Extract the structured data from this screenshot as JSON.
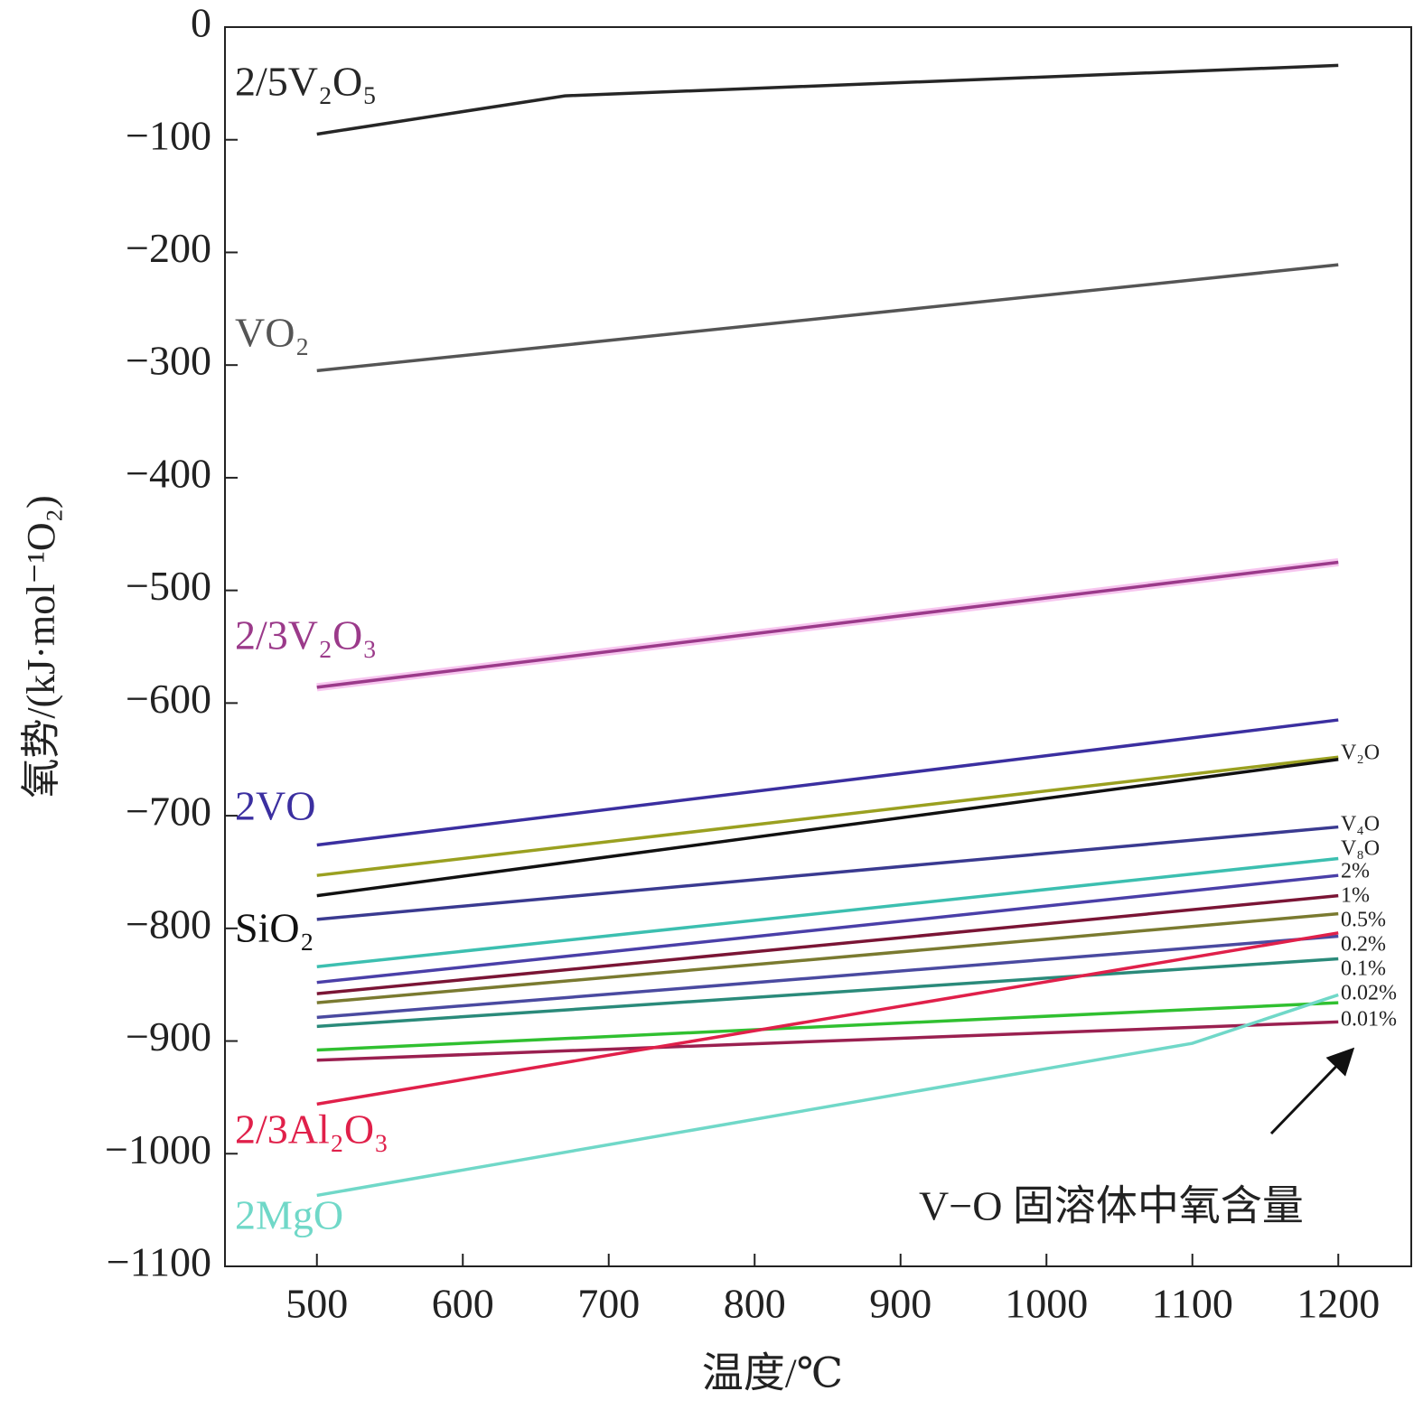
{
  "chart_data": {
    "type": "line",
    "x_label": "温度/℃",
    "y_label": "氧势/(kJ·mol⁻¹O₂)",
    "annotation": "V−O 固溶体中氧含量",
    "xlim": [
      437,
      1250
    ],
    "ylim": [
      -1100,
      0
    ],
    "xticks": [
      500,
      600,
      700,
      800,
      900,
      1000,
      1100,
      1200
    ],
    "yticks": [
      0,
      {
        "value": -100,
        "label": "−100"
      },
      {
        "value": -200,
        "label": "−200"
      },
      {
        "value": -300,
        "label": "−300"
      },
      {
        "value": -400,
        "label": "−400"
      },
      {
        "value": -500,
        "label": "−500"
      },
      {
        "value": -600,
        "label": "−600"
      },
      {
        "value": -700,
        "label": "−700"
      },
      {
        "value": -800,
        "label": "−800"
      },
      {
        "value": -900,
        "label": "−900"
      },
      {
        "value": -1000,
        "label": "−1000"
      },
      {
        "value": -1100,
        "label": "−1100"
      }
    ],
    "grid": false,
    "series": [
      {
        "name": "2/5V₂O₅",
        "color": "#262626",
        "x": [
          500,
          670,
          1200
        ],
        "values": [
          -95,
          -61,
          -34
        ]
      },
      {
        "name": "VO₂",
        "color": "#555555",
        "x": [
          500,
          1200
        ],
        "values": [
          -305,
          -211
        ]
      },
      {
        "name": "2/3V₂O₃",
        "color": "#9b3a8a",
        "x": [
          500,
          1200
        ],
        "values": [
          -586,
          -475
        ]
      },
      {
        "name": "2VO",
        "color": "#3b2fa0",
        "x": [
          500,
          1200
        ],
        "values": [
          -726,
          -615
        ]
      },
      {
        "name": "V₂O",
        "color": "#9aa020",
        "x": [
          500,
          1200
        ],
        "values": [
          -753,
          -648
        ]
      },
      {
        "name": "SiO₂",
        "color": "#111111",
        "x": [
          500,
          1200
        ],
        "values": [
          -771,
          -650
        ]
      },
      {
        "name": "V₄O",
        "color": "#3a3a90",
        "x": [
          500,
          1200
        ],
        "values": [
          -792,
          -710
        ]
      },
      {
        "name": "V₈O",
        "color": "#3cbfb0",
        "x": [
          500,
          1200
        ],
        "values": [
          -834,
          -738
        ]
      },
      {
        "name": "2%",
        "color": "#4a3fa8",
        "x": [
          500,
          1200
        ],
        "values": [
          -848,
          -753
        ]
      },
      {
        "name": "1%",
        "color": "#7a1535",
        "x": [
          500,
          1200
        ],
        "values": [
          -858,
          -771
        ]
      },
      {
        "name": "0.5%",
        "color": "#7a7a30",
        "x": [
          500,
          1200
        ],
        "values": [
          -866,
          -787
        ]
      },
      {
        "name": "0.2%",
        "color": "#4a4aa0",
        "x": [
          500,
          1200
        ],
        "values": [
          -879,
          -807
        ]
      },
      {
        "name": "0.1%",
        "color": "#2a8a7a",
        "x": [
          500,
          1200
        ],
        "values": [
          -887,
          -827
        ]
      },
      {
        "name": "0.02%",
        "color": "#30c030",
        "x": [
          500,
          1200
        ],
        "values": [
          -908,
          -866
        ]
      },
      {
        "name": "0.01%",
        "color": "#9a2050",
        "x": [
          500,
          1200
        ],
        "values": [
          -917,
          -883
        ]
      },
      {
        "name": "2/3Al₂O₃",
        "color": "#e0204a",
        "x": [
          500,
          1200
        ],
        "values": [
          -956,
          -804
        ]
      },
      {
        "name": "2MgO",
        "color": "#70d8c8",
        "x": [
          500,
          1100,
          1200
        ],
        "values": [
          -1037,
          -902,
          -859
        ]
      }
    ]
  }
}
